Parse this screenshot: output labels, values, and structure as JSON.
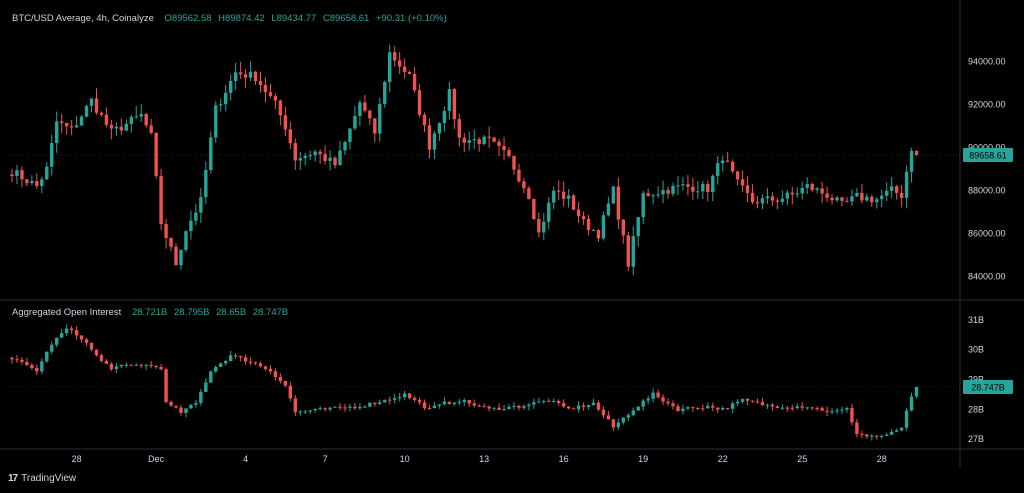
{
  "footer": {
    "logo_mark": "17",
    "brand": "TradingView"
  },
  "colors": {
    "background": "#000000",
    "up": "#26a69a",
    "down": "#ef5350",
    "text": "#d1d4dc",
    "grid": "#2a2e39"
  },
  "price_header": {
    "symbol": "BTC/USD Average, 4h, Coinalyze",
    "open": "O89562.58",
    "high": "H89874.42",
    "low": "L89434.77",
    "close": "C89658.61",
    "change": "+90.31 (+0.10%)"
  },
  "oi_header": {
    "title": "Aggregated Open Interest",
    "v1": "28.721B",
    "v2": "28.795B",
    "v3": "28.65B",
    "v4": "28.747B"
  },
  "chart_data": [
    {
      "type": "candlestick",
      "title": "BTC/USD Average, 4h, Coinalyze",
      "ylim": [
        83000,
        96500
      ],
      "y_ticks": [
        "94000.00",
        "92000.00",
        "90000.00",
        "88000.00",
        "86000.00",
        "84000.00"
      ],
      "y_tick_values": [
        94000,
        92000,
        90000,
        88000,
        86000,
        84000
      ],
      "last_value": 89658.61,
      "last_label": "89658.61",
      "anchors": [
        [
          0,
          88900
        ],
        [
          5,
          88200
        ],
        [
          7,
          89000
        ],
        [
          9,
          91200
        ],
        [
          12,
          90800
        ],
        [
          16,
          92200
        ],
        [
          20,
          90700
        ],
        [
          26,
          91500
        ],
        [
          28,
          90500
        ],
        [
          30,
          86500
        ],
        [
          33,
          84600
        ],
        [
          35,
          86200
        ],
        [
          38,
          87500
        ],
        [
          41,
          91800
        ],
        [
          45,
          93500
        ],
        [
          49,
          93300
        ],
        [
          53,
          92000
        ],
        [
          55,
          91000
        ],
        [
          57,
          89500
        ],
        [
          61,
          89800
        ],
        [
          65,
          89200
        ],
        [
          67,
          90200
        ],
        [
          70,
          92100
        ],
        [
          73,
          90700
        ],
        [
          76,
          94400
        ],
        [
          80,
          93300
        ],
        [
          84,
          90100
        ],
        [
          88,
          92500
        ],
        [
          90,
          90400
        ],
        [
          96,
          90300
        ],
        [
          100,
          89500
        ],
        [
          104,
          87800
        ],
        [
          106,
          86000
        ],
        [
          109,
          88000
        ],
        [
          112,
          87600
        ],
        [
          115,
          86500
        ],
        [
          118,
          86000
        ],
        [
          121,
          88000
        ],
        [
          124,
          84600
        ],
        [
          127,
          87800
        ],
        [
          131,
          88000
        ],
        [
          135,
          88200
        ],
        [
          140,
          88100
        ],
        [
          143,
          89600
        ],
        [
          146,
          88300
        ],
        [
          149,
          87500
        ],
        [
          154,
          87600
        ],
        [
          157,
          87800
        ],
        [
          160,
          88200
        ],
        [
          164,
          87800
        ],
        [
          167,
          87300
        ],
        [
          170,
          87700
        ],
        [
          174,
          87600
        ],
        [
          177,
          88000
        ],
        [
          179,
          87800
        ],
        [
          181,
          90000
        ],
        [
          182,
          89650
        ]
      ]
    },
    {
      "type": "candlestick",
      "title": "Aggregated Open Interest",
      "ylim": [
        26.7,
        31.6
      ],
      "y_ticks": [
        "31B",
        "30B",
        "29B",
        "28B",
        "27B"
      ],
      "y_tick_values": [
        31,
        30,
        29,
        28,
        27
      ],
      "last_value": 28.747,
      "last_label": "28.747B",
      "anchors": [
        [
          0,
          29.7
        ],
        [
          5,
          29.3
        ],
        [
          8,
          30.2
        ],
        [
          11,
          30.7
        ],
        [
          14,
          30.4
        ],
        [
          18,
          29.6
        ],
        [
          20,
          29.4
        ],
        [
          26,
          29.5
        ],
        [
          30,
          29.4
        ],
        [
          31,
          28.2
        ],
        [
          34,
          27.9
        ],
        [
          37,
          28.2
        ],
        [
          40,
          29.3
        ],
        [
          44,
          29.8
        ],
        [
          48,
          29.6
        ],
        [
          52,
          29.3
        ],
        [
          55,
          28.8
        ],
        [
          57,
          27.9
        ],
        [
          63,
          28.0
        ],
        [
          70,
          28.1
        ],
        [
          75,
          28.3
        ],
        [
          79,
          28.5
        ],
        [
          84,
          28.0
        ],
        [
          87,
          28.2
        ],
        [
          90,
          28.3
        ],
        [
          96,
          28.0
        ],
        [
          102,
          28.1
        ],
        [
          108,
          28.3
        ],
        [
          112,
          28.0
        ],
        [
          117,
          28.2
        ],
        [
          121,
          27.4
        ],
        [
          125,
          28.0
        ],
        [
          129,
          28.5
        ],
        [
          134,
          28.0
        ],
        [
          140,
          28.1
        ],
        [
          143,
          28.0
        ],
        [
          147,
          28.3
        ],
        [
          153,
          28.1
        ],
        [
          160,
          28.1
        ],
        [
          165,
          27.9
        ],
        [
          168,
          28.0
        ],
        [
          170,
          27.2
        ],
        [
          172,
          27.1
        ],
        [
          176,
          27.1
        ],
        [
          179,
          27.4
        ],
        [
          181,
          28.4
        ],
        [
          182,
          28.75
        ]
      ]
    }
  ],
  "x_axis": {
    "type": "date",
    "bars_per_day": 6,
    "labels": [
      {
        "text": "28",
        "bar": 13
      },
      {
        "text": "Dec",
        "bar": 29
      },
      {
        "text": "4",
        "bar": 47
      },
      {
        "text": "7",
        "bar": 63
      },
      {
        "text": "10",
        "bar": 79
      },
      {
        "text": "13",
        "bar": 95
      },
      {
        "text": "16",
        "bar": 111
      },
      {
        "text": "19",
        "bar": 127
      },
      {
        "text": "22",
        "bar": 143
      },
      {
        "text": "25",
        "bar": 159
      },
      {
        "text": "28",
        "bar": 175
      }
    ]
  }
}
